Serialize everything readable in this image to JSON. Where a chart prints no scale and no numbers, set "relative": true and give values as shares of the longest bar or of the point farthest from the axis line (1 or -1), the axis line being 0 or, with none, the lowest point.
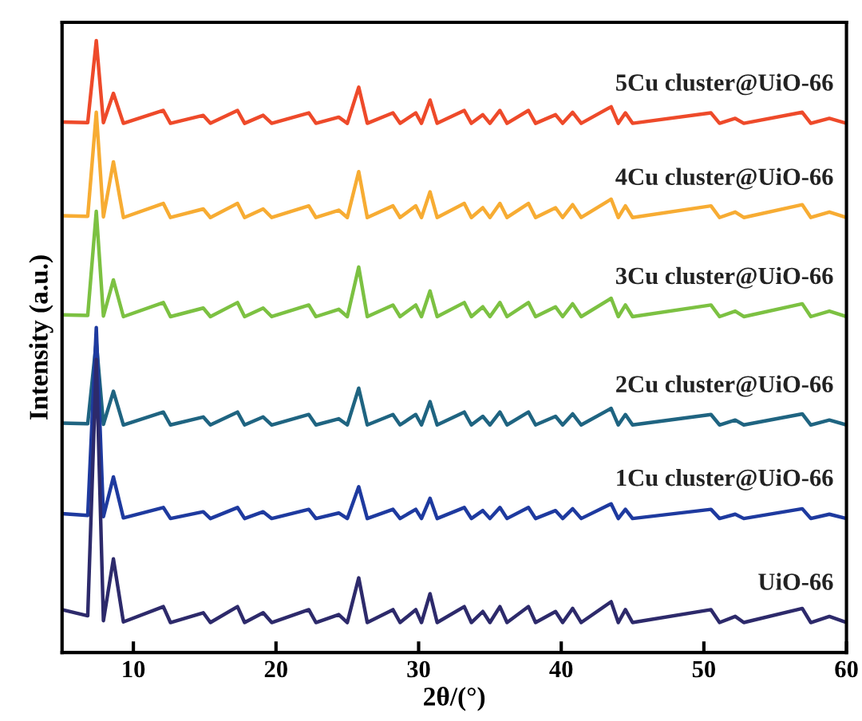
{
  "chart_data": {
    "type": "line",
    "xlabel": "2θ/(°)",
    "ylabel": "Intensity (a.u.)",
    "relative": true,
    "xlim": [
      5,
      60
    ],
    "xticks": [
      10,
      20,
      30,
      40,
      50,
      60
    ],
    "tick_labels": "x",
    "grid": false,
    "legend": false,
    "marker": "none",
    "line_style": "solid",
    "x": [
      5,
      6.8,
      7.4,
      7.9,
      8.6,
      9.3,
      12.1,
      12.6,
      14.9,
      15.4,
      17.3,
      17.8,
      19.1,
      19.7,
      22.3,
      22.8,
      24.4,
      25.0,
      25.8,
      26.4,
      28.2,
      28.7,
      29.8,
      30.2,
      30.8,
      31.3,
      33.2,
      33.7,
      34.5,
      35.0,
      35.7,
      36.2,
      37.7,
      38.2,
      39.6,
      40.1,
      40.8,
      41.4,
      43.5,
      44.0,
      44.5,
      45.0,
      50.5,
      51.1,
      52.2,
      52.8,
      56.9,
      57.5,
      58.8,
      60
    ],
    "series": [
      {
        "name": "5Cu cluster@UiO-66",
        "color": "#ee4a2a",
        "values": [
          0.867,
          0.866,
          1,
          0.866,
          0.914,
          0.865,
          0.886,
          0.865,
          0.878,
          0.865,
          0.886,
          0.865,
          0.878,
          0.865,
          0.882,
          0.865,
          0.875,
          0.865,
          0.924,
          0.865,
          0.882,
          0.865,
          0.882,
          0.865,
          0.903,
          0.865,
          0.886,
          0.865,
          0.879,
          0.865,
          0.886,
          0.865,
          0.886,
          0.865,
          0.879,
          0.865,
          0.883,
          0.865,
          0.892,
          0.865,
          0.882,
          0.865,
          0.882,
          0.865,
          0.873,
          0.865,
          0.883,
          0.865,
          0.873,
          0.865
        ]
      },
      {
        "name": "4Cu cluster@UiO-66",
        "color": "#f7ac33",
        "values": [
          0.714,
          0.713,
          0.883,
          0.712,
          0.802,
          0.711,
          0.734,
          0.711,
          0.725,
          0.711,
          0.734,
          0.711,
          0.725,
          0.711,
          0.73,
          0.711,
          0.723,
          0.711,
          0.786,
          0.711,
          0.73,
          0.711,
          0.73,
          0.711,
          0.753,
          0.711,
          0.734,
          0.711,
          0.727,
          0.711,
          0.734,
          0.711,
          0.734,
          0.711,
          0.727,
          0.711,
          0.732,
          0.711,
          0.741,
          0.711,
          0.73,
          0.711,
          0.73,
          0.711,
          0.72,
          0.711,
          0.732,
          0.711,
          0.72,
          0.711
        ]
      },
      {
        "name": "3Cu cluster@UiO-66",
        "color": "#7cc142",
        "values": [
          0.552,
          0.551,
          0.721,
          0.55,
          0.609,
          0.549,
          0.572,
          0.549,
          0.563,
          0.549,
          0.572,
          0.549,
          0.563,
          0.549,
          0.568,
          0.549,
          0.561,
          0.549,
          0.63,
          0.549,
          0.568,
          0.549,
          0.568,
          0.549,
          0.591,
          0.549,
          0.572,
          0.549,
          0.565,
          0.549,
          0.572,
          0.549,
          0.572,
          0.549,
          0.565,
          0.549,
          0.57,
          0.549,
          0.579,
          0.549,
          0.568,
          0.549,
          0.568,
          0.549,
          0.558,
          0.549,
          0.57,
          0.549,
          0.558,
          0.549
        ]
      },
      {
        "name": "2Cu cluster@UiO-66",
        "color": "#1f6481",
        "values": [
          0.375,
          0.374,
          0.508,
          0.373,
          0.427,
          0.372,
          0.393,
          0.372,
          0.385,
          0.372,
          0.393,
          0.372,
          0.385,
          0.372,
          0.389,
          0.372,
          0.382,
          0.372,
          0.432,
          0.372,
          0.389,
          0.372,
          0.389,
          0.372,
          0.41,
          0.372,
          0.393,
          0.372,
          0.386,
          0.372,
          0.393,
          0.372,
          0.393,
          0.372,
          0.386,
          0.372,
          0.39,
          0.372,
          0.399,
          0.372,
          0.389,
          0.372,
          0.389,
          0.372,
          0.38,
          0.372,
          0.39,
          0.372,
          0.38,
          0.372
        ]
      },
      {
        "name": "1Cu cluster@UiO-66",
        "color": "#1e3a9f",
        "values": [
          0.227,
          0.224,
          0.531,
          0.222,
          0.287,
          0.22,
          0.237,
          0.219,
          0.23,
          0.219,
          0.237,
          0.219,
          0.23,
          0.219,
          0.234,
          0.219,
          0.228,
          0.219,
          0.271,
          0.219,
          0.234,
          0.219,
          0.234,
          0.219,
          0.252,
          0.219,
          0.237,
          0.219,
          0.232,
          0.219,
          0.237,
          0.219,
          0.237,
          0.219,
          0.232,
          0.219,
          0.235,
          0.219,
          0.243,
          0.219,
          0.234,
          0.219,
          0.234,
          0.219,
          0.226,
          0.219,
          0.235,
          0.219,
          0.226,
          0.219
        ]
      },
      {
        "name": "UiO-66",
        "color": "#2d2a6b",
        "values": [
          0.07,
          0.06,
          0.479,
          0.052,
          0.153,
          0.05,
          0.075,
          0.049,
          0.065,
          0.049,
          0.075,
          0.049,
          0.065,
          0.049,
          0.07,
          0.049,
          0.062,
          0.049,
          0.122,
          0.049,
          0.07,
          0.049,
          0.07,
          0.049,
          0.096,
          0.049,
          0.075,
          0.049,
          0.067,
          0.049,
          0.075,
          0.049,
          0.075,
          0.049,
          0.067,
          0.049,
          0.072,
          0.049,
          0.083,
          0.049,
          0.07,
          0.049,
          0.07,
          0.049,
          0.059,
          0.049,
          0.072,
          0.049,
          0.059,
          0.049
        ]
      }
    ]
  }
}
